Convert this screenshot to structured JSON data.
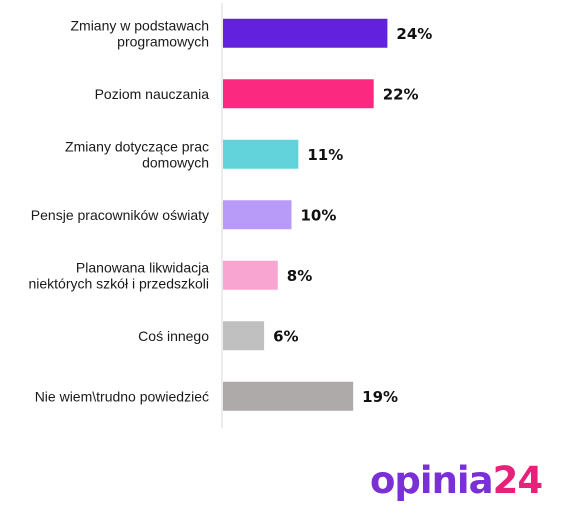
{
  "chart_data": {
    "type": "bar",
    "orientation": "horizontal",
    "categories": [
      [
        "Zmiany w podstawach",
        "programowych"
      ],
      [
        "Poziom nauczania"
      ],
      [
        "Zmiany dotyczące prac",
        "domowych"
      ],
      [
        "Pensje pracowników oświaty"
      ],
      [
        "Planowana likwidacja",
        "niektórych szkół i przedszkoli"
      ],
      [
        "Coś innego"
      ],
      [
        "Nie wiem\\trudno powiedzieć"
      ]
    ],
    "values": [
      24,
      22,
      11,
      10,
      8,
      6,
      19
    ],
    "value_labels": [
      "24%",
      "22%",
      "11%",
      "10%",
      "8%",
      "6%",
      "19%"
    ],
    "colors": [
      "#6222dd",
      "#fb2a80",
      "#62d3da",
      "#b89af8",
      "#f8a6d1",
      "#c0c0c0",
      "#aeaaaa"
    ],
    "xlim": [
      0,
      40
    ],
    "grid": false,
    "title": "",
    "xlabel": "",
    "ylabel": ""
  },
  "logo": {
    "text_main": "opinia",
    "text_accent": "24",
    "color_main": "#7b2fd8",
    "color_accent": "#e8207a"
  }
}
